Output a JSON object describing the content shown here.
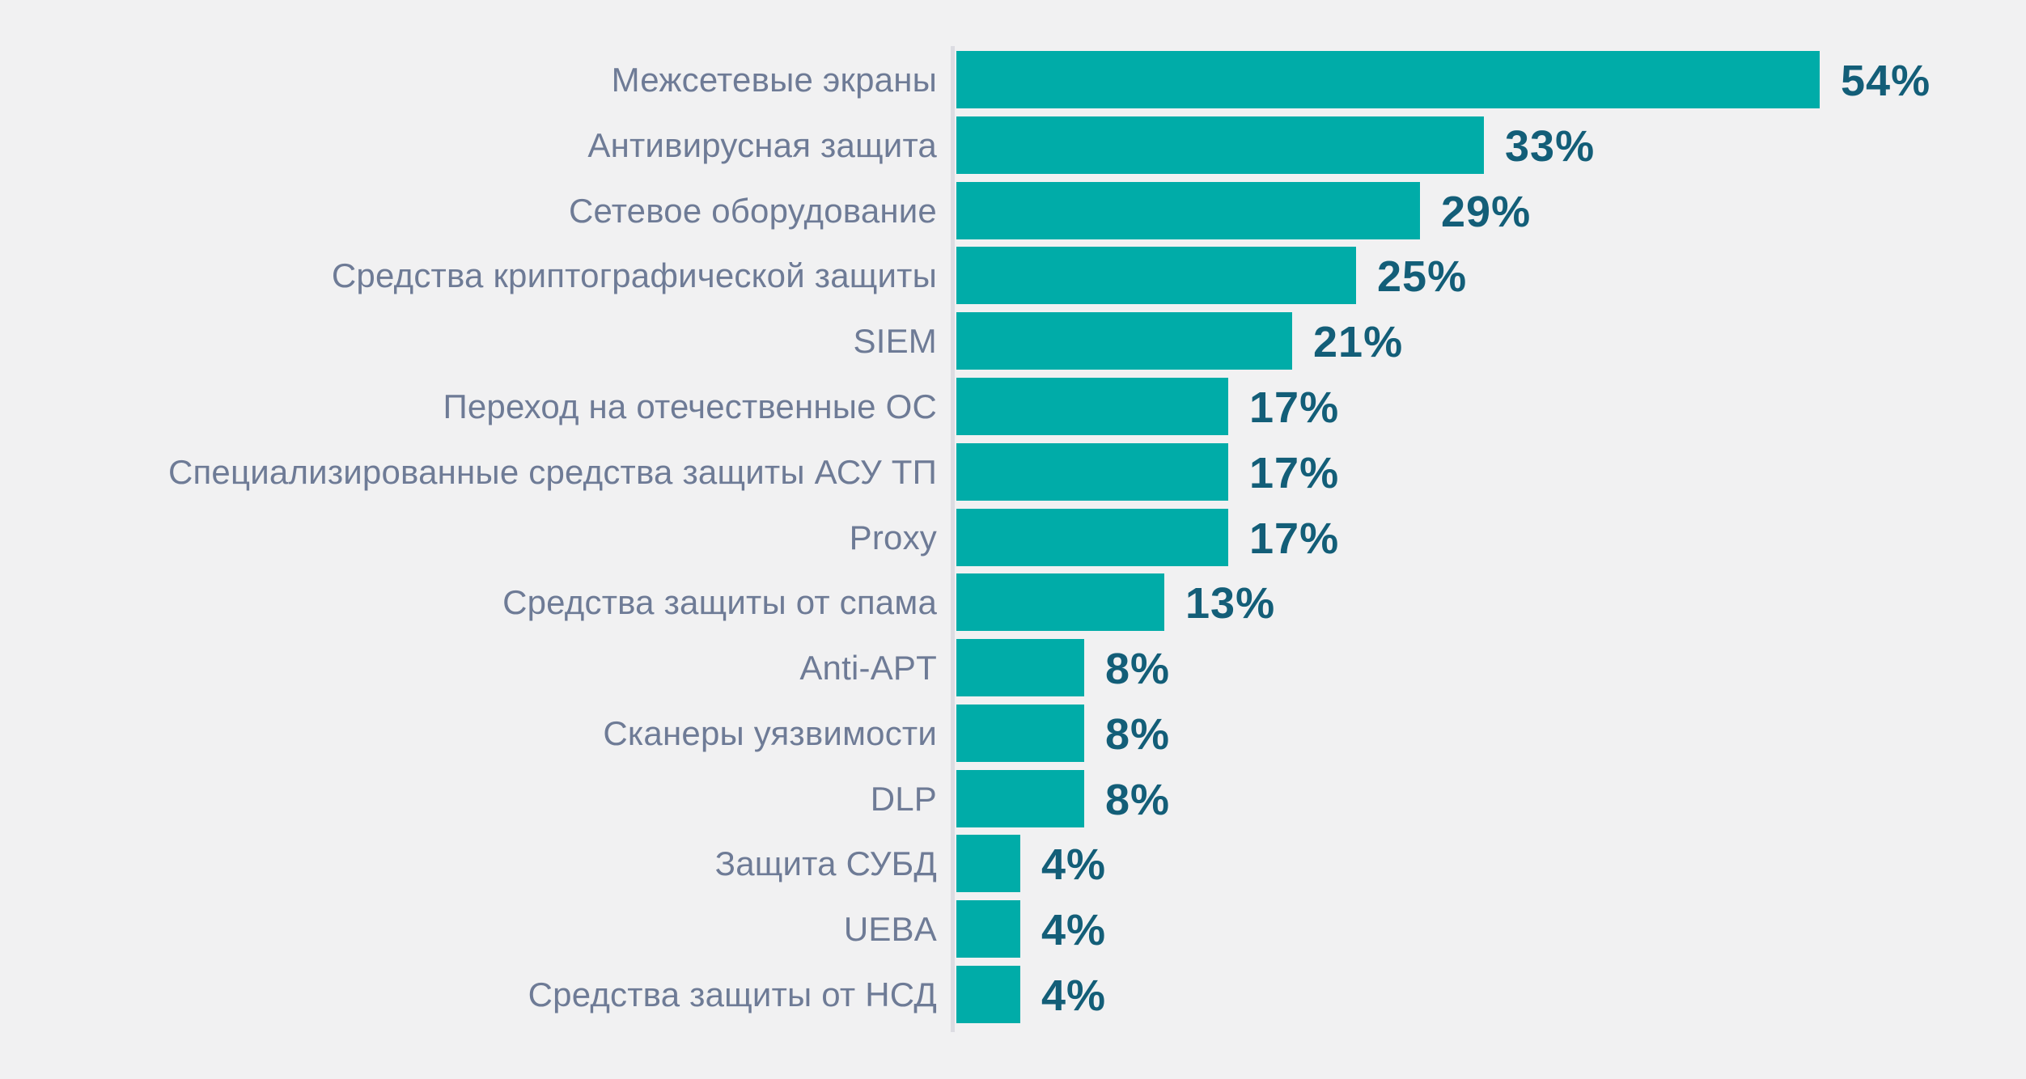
{
  "chart_data": {
    "type": "bar",
    "orientation": "horizontal",
    "title": "",
    "xlabel": "",
    "ylabel": "",
    "unit": "%",
    "grid": false,
    "legend_position": "none",
    "sort_order": "descending",
    "xlim": [
      0,
      67
    ],
    "categories": [
      "Межсетевые экраны",
      "Антивирусная защита",
      "Сетевое оборудование",
      "Средства криптографической защиты",
      "SIEM",
      "Переход на отечественные ОС",
      "Специализированные средства защиты АСУ ТП",
      "Proxy",
      "Средства защиты от спама",
      "Anti-APT",
      "Сканеры уязвимости",
      "DLP",
      "Защита СУБД",
      "UEBA",
      "Средства защиты от НСД"
    ],
    "values": [
      54,
      33,
      29,
      25,
      21,
      17,
      17,
      17,
      13,
      8,
      8,
      8,
      4,
      4,
      4
    ],
    "value_labels": [
      "54%",
      "33%",
      "29%",
      "25%",
      "21%",
      "17%",
      "17%",
      "17%",
      "13%",
      "8%",
      "8%",
      "8%",
      "4%",
      "4%",
      "4%"
    ]
  },
  "colors": {
    "background": "#f1f1f2",
    "bar": "#00aca8",
    "value_label": "#135e78",
    "category_label": "#6e7b96",
    "axis_line": "#dcdce2"
  }
}
